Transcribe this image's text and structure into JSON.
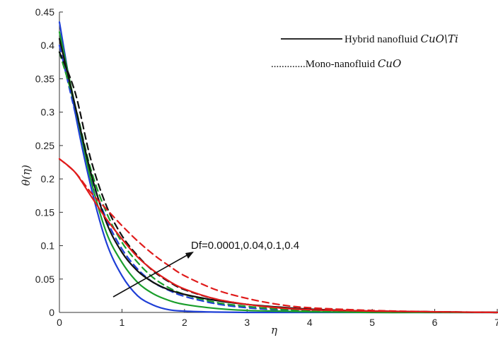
{
  "chart_data": {
    "type": "line",
    "title": "",
    "xlabel": "η",
    "ylabel": "θ(η)",
    "xlim": [
      0,
      7
    ],
    "ylim": [
      0,
      0.45
    ],
    "xticks": [
      "0",
      "1",
      "2",
      "3",
      "4",
      "5",
      "6",
      "7"
    ],
    "yticks": [
      "0",
      "0.05",
      "0.1",
      "0.15",
      "0.2",
      "0.25",
      "0.3",
      "0.35",
      "0.4",
      "0.45"
    ],
    "grid": false,
    "legend": [
      {
        "label_prefix": "Hybrid nanofluid ",
        "label_math": "CuO\\Ti",
        "style": "solid"
      },
      {
        "label_prefix": ".............Mono-nanofluid ",
        "label_math": "CuO",
        "style": "dashed"
      }
    ],
    "annotation": "Df=0.0001,0.04,0.1,0.4",
    "x": [
      0,
      0.25,
      0.5,
      0.75,
      1.0,
      1.25,
      1.5,
      1.75,
      2.0,
      2.5,
      3.0,
      3.5,
      4.0,
      5.0,
      6.0,
      7.0
    ],
    "series": [
      {
        "color": "#1f3fd6",
        "style": "solid",
        "values": [
          0.435,
          0.3,
          0.19,
          0.105,
          0.055,
          0.025,
          0.011,
          0.004,
          0.002,
          0.0005,
          0,
          0,
          0,
          0,
          0,
          0
        ]
      },
      {
        "color": "#1f3fd6",
        "style": "dashed",
        "values": [
          0.4,
          0.3,
          0.205,
          0.14,
          0.095,
          0.065,
          0.045,
          0.033,
          0.024,
          0.013,
          0.007,
          0.004,
          0.003,
          0.001,
          0.0005,
          0
        ]
      },
      {
        "color": "#1a9e2b",
        "style": "solid",
        "values": [
          0.42,
          0.31,
          0.2,
          0.12,
          0.075,
          0.045,
          0.028,
          0.018,
          0.012,
          0.006,
          0.003,
          0.002,
          0.001,
          0,
          0,
          0
        ]
      },
      {
        "color": "#1a9e2b",
        "style": "dashed",
        "values": [
          0.39,
          0.31,
          0.215,
          0.15,
          0.105,
          0.075,
          0.052,
          0.037,
          0.027,
          0.015,
          0.009,
          0.005,
          0.003,
          0.001,
          0.0005,
          0
        ]
      },
      {
        "color": "#111111",
        "style": "solid",
        "values": [
          0.41,
          0.31,
          0.21,
          0.135,
          0.09,
          0.062,
          0.045,
          0.034,
          0.027,
          0.018,
          0.012,
          0.008,
          0.005,
          0.002,
          0.001,
          0
        ]
      },
      {
        "color": "#111111",
        "style": "dashed",
        "values": [
          0.39,
          0.33,
          0.23,
          0.16,
          0.115,
          0.085,
          0.062,
          0.046,
          0.034,
          0.02,
          0.012,
          0.007,
          0.004,
          0.002,
          0.001,
          0
        ]
      },
      {
        "color": "#e01b1b",
        "style": "solid",
        "values": [
          0.23,
          0.21,
          0.175,
          0.14,
          0.11,
          0.083,
          0.063,
          0.047,
          0.035,
          0.02,
          0.012,
          0.007,
          0.004,
          0.002,
          0.001,
          0
        ]
      },
      {
        "color": "#e01b1b",
        "style": "dashed",
        "values": [
          0.23,
          0.21,
          0.18,
          0.155,
          0.13,
          0.107,
          0.087,
          0.07,
          0.055,
          0.034,
          0.021,
          0.012,
          0.007,
          0.003,
          0.001,
          0
        ]
      }
    ]
  }
}
